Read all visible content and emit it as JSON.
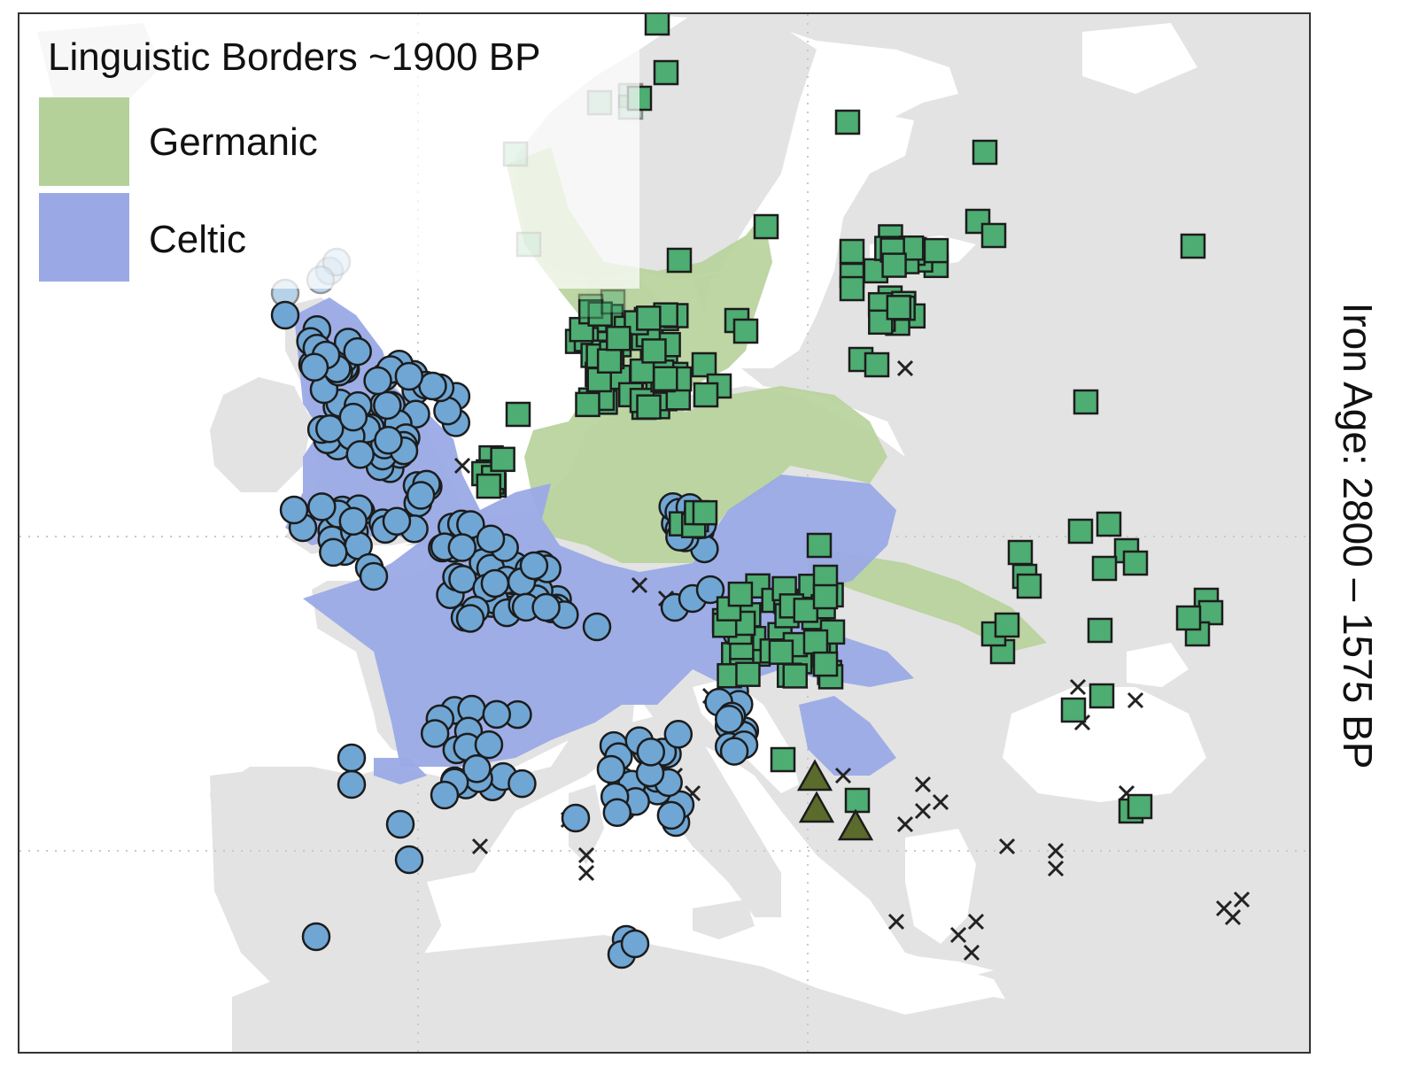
{
  "legend": {
    "title": "Linguistic Borders ~1900 BP",
    "items": [
      {
        "label": "Germanic",
        "color": "#b5d19a"
      },
      {
        "label": "Celtic",
        "color": "#9aa9e5"
      }
    ]
  },
  "panel_label": "Iron Age: 2800 – 1575 BP",
  "colors": {
    "land": "#e3e3e3",
    "sea": "#ffffff",
    "germanic_region": "#b7d39c",
    "celtic_region": "#9aaae6",
    "circle_fill": "#6fa6d4",
    "square_fill": "#4ead72",
    "triangle_fill": "#5a6b2c",
    "cross": "#222222",
    "outline": "#1c1c1c"
  },
  "marker_symbols": [
    "circle",
    "square",
    "triangle",
    "cross"
  ]
}
